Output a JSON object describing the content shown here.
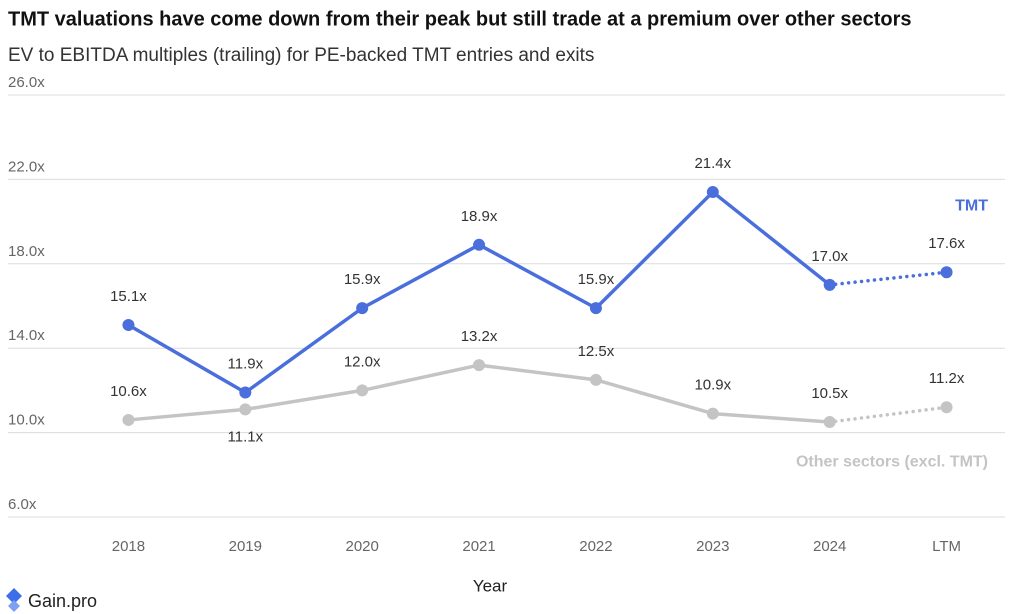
{
  "chart_data": {
    "type": "line",
    "title": "TMT valuations have come down from their peak but still trade at a premium over other sectors",
    "subtitle": "EV to EBITDA multiples (trailing) for PE-backed TMT entries and exits",
    "x_label": "Year",
    "logo_text": "Gain.pro",
    "categories": [
      "2018",
      "2019",
      "2020",
      "2021",
      "2022",
      "2023",
      "2024",
      "LTM"
    ],
    "series": [
      {
        "name": "TMT",
        "color": "#4a6fdc",
        "values": [
          15.1,
          11.9,
          15.9,
          18.9,
          15.9,
          21.4,
          17.0,
          17.6
        ],
        "value_labels": [
          "15.1x",
          "11.9x",
          "15.9x",
          "18.9x",
          "15.9x",
          "21.4x",
          "17.0x",
          "17.6x"
        ]
      },
      {
        "name": "Other sectors (excl. TMT)",
        "color": "#c4c4c4",
        "values": [
          10.6,
          11.1,
          12.0,
          13.2,
          12.5,
          10.9,
          10.5,
          11.2
        ],
        "value_labels": [
          "10.6x",
          "11.1x",
          "12.0x",
          "13.2x",
          "12.5x",
          "10.9x",
          "10.5x",
          "11.2x"
        ]
      }
    ],
    "dotted_last_segment": true,
    "ylim": [
      6,
      26
    ],
    "yticks": [
      {
        "value": 6,
        "label": "6.0x"
      },
      {
        "value": 10,
        "label": "10.0x"
      },
      {
        "value": 14,
        "label": "14.0x"
      },
      {
        "value": 18,
        "label": "18.0x"
      },
      {
        "value": 22,
        "label": "22.0x"
      },
      {
        "value": 26,
        "label": "26.0x"
      }
    ],
    "grid": true
  }
}
